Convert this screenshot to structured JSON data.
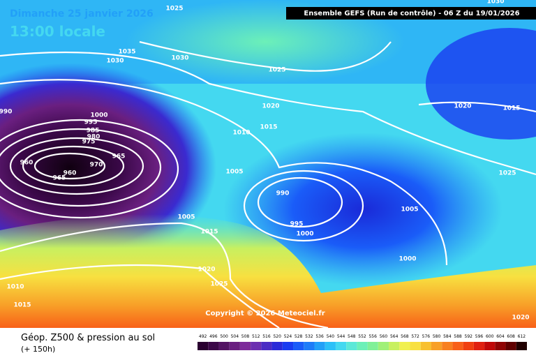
{
  "header": {
    "date": "Dimanche 25 janvier 2026",
    "time": "13:00 locale",
    "run": "Ensemble GEFS  (Run de contrôle)  -  06 Z du 19/01/2026"
  },
  "copyright": "Copyright © 2026 Meteociel.fr",
  "footer": {
    "title": "Géop. Z500 & pression au sol",
    "lead": "(+ 150h)"
  },
  "isobar_labels": [
    "1025",
    "1035",
    "1030",
    "1030",
    "1025",
    "1020",
    "1015",
    "1010",
    "1000",
    "995",
    "985",
    "980",
    "975",
    "965",
    "970",
    "960",
    "960",
    "965",
    "990",
    "1005",
    "990",
    "995",
    "1000",
    "1005",
    "1015",
    "1020",
    "1025",
    "1010",
    "1015",
    "1020",
    "1015",
    "1025",
    "1005",
    "1000",
    "1020",
    "1030"
  ],
  "legend": {
    "values": [
      492,
      496,
      500,
      504,
      508,
      512,
      516,
      520,
      524,
      528,
      532,
      536,
      540,
      544,
      548,
      552,
      556,
      560,
      564,
      568,
      572,
      576,
      580,
      584,
      588,
      592,
      596,
      600,
      604,
      608,
      612
    ],
    "colors": [
      "#2a0030",
      "#3c0848",
      "#531463",
      "#6a1f80",
      "#7d2b9a",
      "#6c2fb0",
      "#4b2cc4",
      "#2a2ad8",
      "#1a3cf0",
      "#1a5cf8",
      "#1e7cf8",
      "#22a0f8",
      "#2cc0f8",
      "#44d8f0",
      "#5ce8d8",
      "#6cf0b8",
      "#80f098",
      "#a0f078",
      "#c8f060",
      "#f0f050",
      "#f8e040",
      "#f8c030",
      "#f8a028",
      "#f88020",
      "#f86018",
      "#f04010",
      "#e02010",
      "#c00808",
      "#900404",
      "#600000",
      "#200000"
    ]
  }
}
